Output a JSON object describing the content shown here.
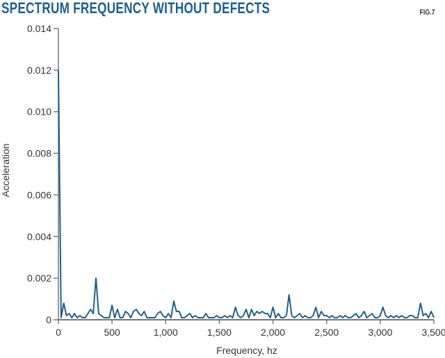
{
  "chart_data": {
    "type": "line",
    "title": "SPECTRUM FREQUENCY WITHOUT DEFECTS",
    "figure_label": "FIG.7",
    "xlabel": "Frequency, hz",
    "ylabel": "Acceleration",
    "xlim": [
      0,
      3500
    ],
    "ylim": [
      0,
      0.014
    ],
    "xticks": [
      0,
      500,
      1000,
      1500,
      2000,
      2500,
      3000,
      3500
    ],
    "xtick_labels": [
      "0",
      "500",
      "1,000",
      "1,500",
      "2,000",
      "2,500",
      "3,000",
      "3,500"
    ],
    "yticks": [
      0,
      0.002,
      0.004,
      0.006,
      0.008,
      0.01,
      0.012,
      0.014
    ],
    "ytick_labels": [
      "0",
      "0.002",
      "0.004",
      "0.006",
      "0.008",
      "0.010",
      "0.012",
      "0.014"
    ],
    "grid": false,
    "line_color": "#1f5f8b",
    "title_color": "#1b5f8f",
    "series": [
      {
        "x": [
          0,
          25,
          50,
          75,
          100,
          125,
          150,
          175,
          200,
          225,
          250,
          275,
          300,
          325,
          350,
          375,
          400,
          425,
          450,
          475,
          500,
          525,
          550,
          575,
          600,
          625,
          650,
          675,
          700,
          725,
          750,
          775,
          800,
          825,
          850,
          875,
          900,
          925,
          950,
          975,
          1000,
          1025,
          1050,
          1075,
          1100,
          1125,
          1150,
          1175,
          1200,
          1225,
          1250,
          1275,
          1300,
          1325,
          1350,
          1375,
          1400,
          1425,
          1450,
          1475,
          1500,
          1525,
          1550,
          1575,
          1600,
          1625,
          1650,
          1675,
          1700,
          1725,
          1750,
          1775,
          1800,
          1825,
          1850,
          1875,
          1900,
          1925,
          1950,
          1975,
          2000,
          2025,
          2050,
          2075,
          2100,
          2125,
          2150,
          2175,
          2200,
          2225,
          2250,
          2275,
          2300,
          2325,
          2350,
          2375,
          2400,
          2425,
          2450,
          2475,
          2500,
          2525,
          2550,
          2575,
          2600,
          2625,
          2650,
          2675,
          2700,
          2725,
          2750,
          2775,
          2800,
          2825,
          2850,
          2875,
          2900,
          2925,
          2950,
          2975,
          3000,
          3025,
          3050,
          3075,
          3100,
          3125,
          3150,
          3175,
          3200,
          3225,
          3250,
          3275,
          3300,
          3325,
          3350,
          3375,
          3400,
          3425,
          3450,
          3475,
          3500
        ],
        "y": [
          0.012,
          0.0001,
          0.0008,
          0.0002,
          0.0003,
          0.0001,
          0.0003,
          0.0001,
          0.0002,
          0.0001,
          0.0001,
          0.0003,
          0.0005,
          0.0003,
          0.002,
          0.0003,
          0.0002,
          0.0001,
          0.0001,
          0.0001,
          0.0007,
          0.0001,
          0.0005,
          0.0001,
          0.0001,
          0.0004,
          0.0003,
          0.0001,
          0.0004,
          0.0005,
          0.0003,
          0.0002,
          0.0004,
          0.0001,
          0.0001,
          0.0001,
          0.0001,
          0.0003,
          0.0004,
          0.0002,
          0.0001,
          0.0003,
          0.0001,
          0.0009,
          0.0004,
          0.0004,
          0.0001,
          0.0001,
          0.0002,
          0.0003,
          0.0001,
          0.0002,
          0.0001,
          0.0001,
          0.0001,
          0.0003,
          0.0001,
          0.0001,
          0.0001,
          0.0002,
          0.0001,
          0.0001,
          0.0002,
          0.0001,
          0.0002,
          0.0001,
          0.0006,
          0.0002,
          0.0001,
          0.0002,
          0.0005,
          0.0001,
          0.0005,
          0.0002,
          0.0004,
          0.0003,
          0.0004,
          0.0003,
          0.0003,
          0.0001,
          0.0006,
          0.0001,
          0.0003,
          0.0001,
          0.0001,
          0.0002,
          0.0012,
          0.0002,
          0.0001,
          0.0002,
          0.0003,
          0.0001,
          0.0002,
          0.0001,
          0.0001,
          0.0002,
          0.0006,
          0.0001,
          0.0004,
          0.0002,
          0.0002,
          0.0001,
          0.0002,
          0.0001,
          0.0001,
          0.0002,
          0.0001,
          0.0002,
          0.0001,
          0.0001,
          0.0002,
          0.0003,
          0.0001,
          0.0002,
          0.0004,
          0.0001,
          0.0002,
          0.0003,
          0.0001,
          0.0001,
          0.0002,
          0.0006,
          0.0002,
          0.0001,
          0.0002,
          0.0001,
          0.0002,
          0.0001,
          0.0002,
          0.0001,
          0.0001,
          0.0002,
          0.0002,
          0.0001,
          0.0001,
          0.0008,
          0.0002,
          0.0003,
          0.0001,
          0.0004,
          0.0001
        ]
      }
    ]
  }
}
